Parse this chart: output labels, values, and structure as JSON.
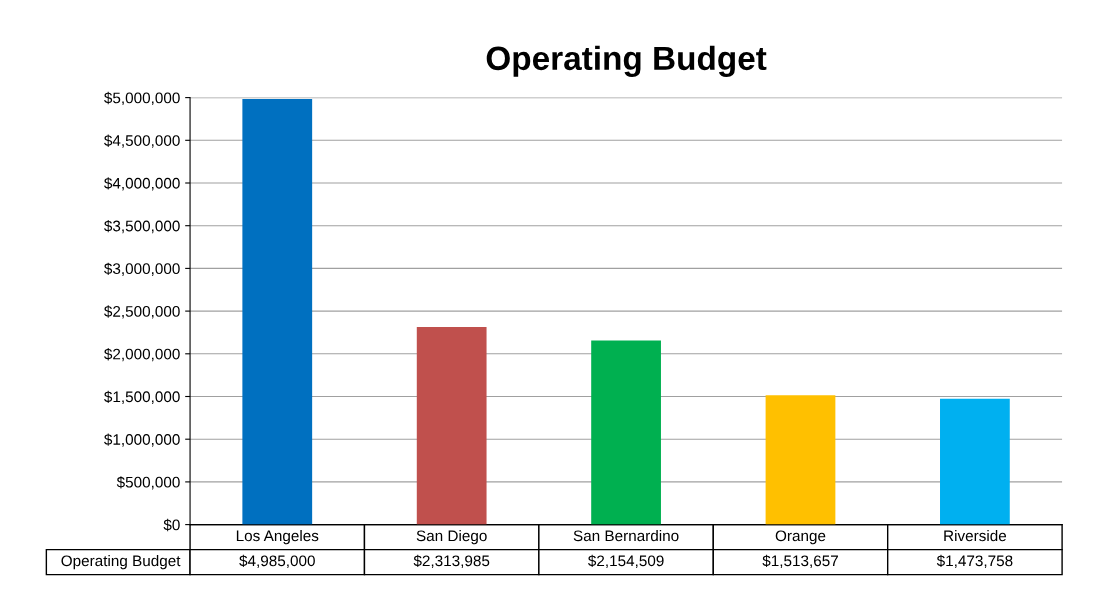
{
  "chart_data": {
    "type": "bar",
    "title": "Operating Budget",
    "categories": [
      "Los Angeles",
      "San Diego",
      "San Bernardino",
      "Orange",
      "Riverside"
    ],
    "series": [
      {
        "name": "Operating Budget",
        "colors": [
          "#0070c0",
          "#c0504d",
          "#00b050",
          "#ffc000",
          "#00b0f0"
        ],
        "values": [
          4985000,
          2313985,
          2154509,
          1513657,
          1473758
        ],
        "value_labels": [
          "$4,985,000",
          "$2,313,985",
          "$2,154,509",
          "$1,513,657",
          "$1,473,758"
        ]
      }
    ],
    "ylim": [
      0,
      5000000
    ],
    "yticks": [
      {
        "value": 0,
        "label": "$0"
      },
      {
        "value": 500000,
        "label": "$500,000"
      },
      {
        "value": 1000000,
        "label": "$1,000,000"
      },
      {
        "value": 1500000,
        "label": "$1,500,000"
      },
      {
        "value": 2000000,
        "label": "$2,000,000"
      },
      {
        "value": 2500000,
        "label": "$2,500,000"
      },
      {
        "value": 3000000,
        "label": "$3,000,000"
      },
      {
        "value": 3500000,
        "label": "$3,500,000"
      },
      {
        "value": 4000000,
        "label": "$4,000,000"
      },
      {
        "value": 4500000,
        "label": "$4,500,000"
      },
      {
        "value": 5000000,
        "label": "$5,000,000"
      }
    ],
    "grid": "y",
    "legend": false
  }
}
